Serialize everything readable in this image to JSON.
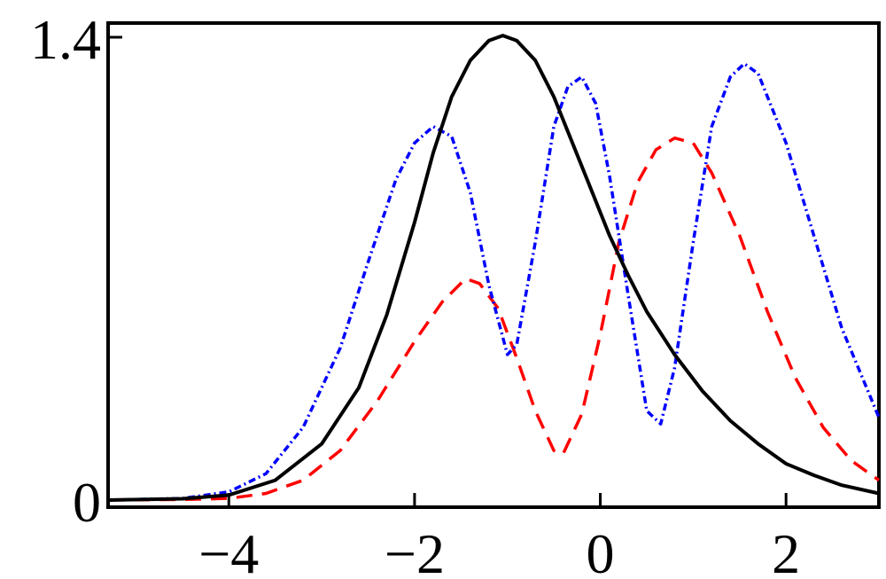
{
  "chart_data": {
    "type": "line",
    "title": "",
    "xlabel": "",
    "ylabel": "",
    "xlim": [
      -5.3,
      3.0
    ],
    "ylim": [
      0,
      1.4
    ],
    "grid": false,
    "legend": "none",
    "x_ticks": [
      {
        "value": -4,
        "label": "−4"
      },
      {
        "value": -2,
        "label": "−2"
      },
      {
        "value": 0,
        "label": "0"
      },
      {
        "value": 2,
        "label": "2"
      }
    ],
    "y_ticks": [
      {
        "value": 0,
        "label": "0"
      },
      {
        "value": 1.4,
        "label": "1.4"
      }
    ],
    "series": [
      {
        "style": "solid",
        "color": "#000000",
        "points": [
          [
            -5.3,
            0.0
          ],
          [
            -4.5,
            0.004
          ],
          [
            -4.0,
            0.015
          ],
          [
            -3.5,
            0.06
          ],
          [
            -3.0,
            0.17
          ],
          [
            -2.6,
            0.34
          ],
          [
            -2.3,
            0.56
          ],
          [
            -2.0,
            0.84
          ],
          [
            -1.8,
            1.05
          ],
          [
            -1.6,
            1.22
          ],
          [
            -1.4,
            1.33
          ],
          [
            -1.2,
            1.39
          ],
          [
            -1.05,
            1.405
          ],
          [
            -0.9,
            1.39
          ],
          [
            -0.7,
            1.33
          ],
          [
            -0.5,
            1.22
          ],
          [
            -0.3,
            1.08
          ],
          [
            -0.1,
            0.94
          ],
          [
            0.1,
            0.8
          ],
          [
            0.3,
            0.68
          ],
          [
            0.5,
            0.57
          ],
          [
            0.8,
            0.44
          ],
          [
            1.1,
            0.33
          ],
          [
            1.4,
            0.24
          ],
          [
            1.7,
            0.17
          ],
          [
            2.0,
            0.11
          ],
          [
            2.3,
            0.075
          ],
          [
            2.6,
            0.045
          ],
          [
            3.0,
            0.02
          ]
        ]
      },
      {
        "style": "dashed",
        "color": "#ff0000",
        "points": [
          [
            -5.3,
            0.0
          ],
          [
            -4.5,
            0.002
          ],
          [
            -4.0,
            0.005
          ],
          [
            -3.6,
            0.02
          ],
          [
            -3.2,
            0.06
          ],
          [
            -2.8,
            0.15
          ],
          [
            -2.4,
            0.3
          ],
          [
            -2.0,
            0.48
          ],
          [
            -1.7,
            0.6
          ],
          [
            -1.45,
            0.67
          ],
          [
            -1.3,
            0.655
          ],
          [
            -1.1,
            0.58
          ],
          [
            -0.9,
            0.43
          ],
          [
            -0.7,
            0.27
          ],
          [
            -0.5,
            0.15
          ],
          [
            -0.4,
            0.14
          ],
          [
            -0.2,
            0.26
          ],
          [
            0.0,
            0.5
          ],
          [
            0.2,
            0.78
          ],
          [
            0.4,
            0.96
          ],
          [
            0.6,
            1.06
          ],
          [
            0.8,
            1.095
          ],
          [
            1.0,
            1.08
          ],
          [
            1.2,
            0.99
          ],
          [
            1.5,
            0.8
          ],
          [
            1.8,
            0.57
          ],
          [
            2.1,
            0.37
          ],
          [
            2.4,
            0.22
          ],
          [
            2.7,
            0.12
          ],
          [
            3.0,
            0.06
          ]
        ]
      },
      {
        "style": "dot-dash",
        "color": "#0000ff",
        "points": [
          [
            -5.3,
            0.0
          ],
          [
            -4.5,
            0.005
          ],
          [
            -4.0,
            0.025
          ],
          [
            -3.6,
            0.08
          ],
          [
            -3.2,
            0.22
          ],
          [
            -2.8,
            0.46
          ],
          [
            -2.5,
            0.72
          ],
          [
            -2.2,
            0.97
          ],
          [
            -2.0,
            1.08
          ],
          [
            -1.8,
            1.13
          ],
          [
            -1.6,
            1.1
          ],
          [
            -1.4,
            0.93
          ],
          [
            -1.2,
            0.65
          ],
          [
            -1.0,
            0.44
          ],
          [
            -0.9,
            0.47
          ],
          [
            -0.7,
            0.78
          ],
          [
            -0.5,
            1.13
          ],
          [
            -0.35,
            1.25
          ],
          [
            -0.2,
            1.28
          ],
          [
            -0.05,
            1.2
          ],
          [
            0.1,
            0.98
          ],
          [
            0.3,
            0.62
          ],
          [
            0.5,
            0.27
          ],
          [
            0.65,
            0.23
          ],
          [
            0.8,
            0.4
          ],
          [
            1.0,
            0.78
          ],
          [
            1.2,
            1.13
          ],
          [
            1.4,
            1.28
          ],
          [
            1.55,
            1.32
          ],
          [
            1.7,
            1.29
          ],
          [
            2.0,
            1.08
          ],
          [
            2.3,
            0.8
          ],
          [
            2.6,
            0.52
          ],
          [
            3.0,
            0.25
          ]
        ]
      }
    ]
  }
}
